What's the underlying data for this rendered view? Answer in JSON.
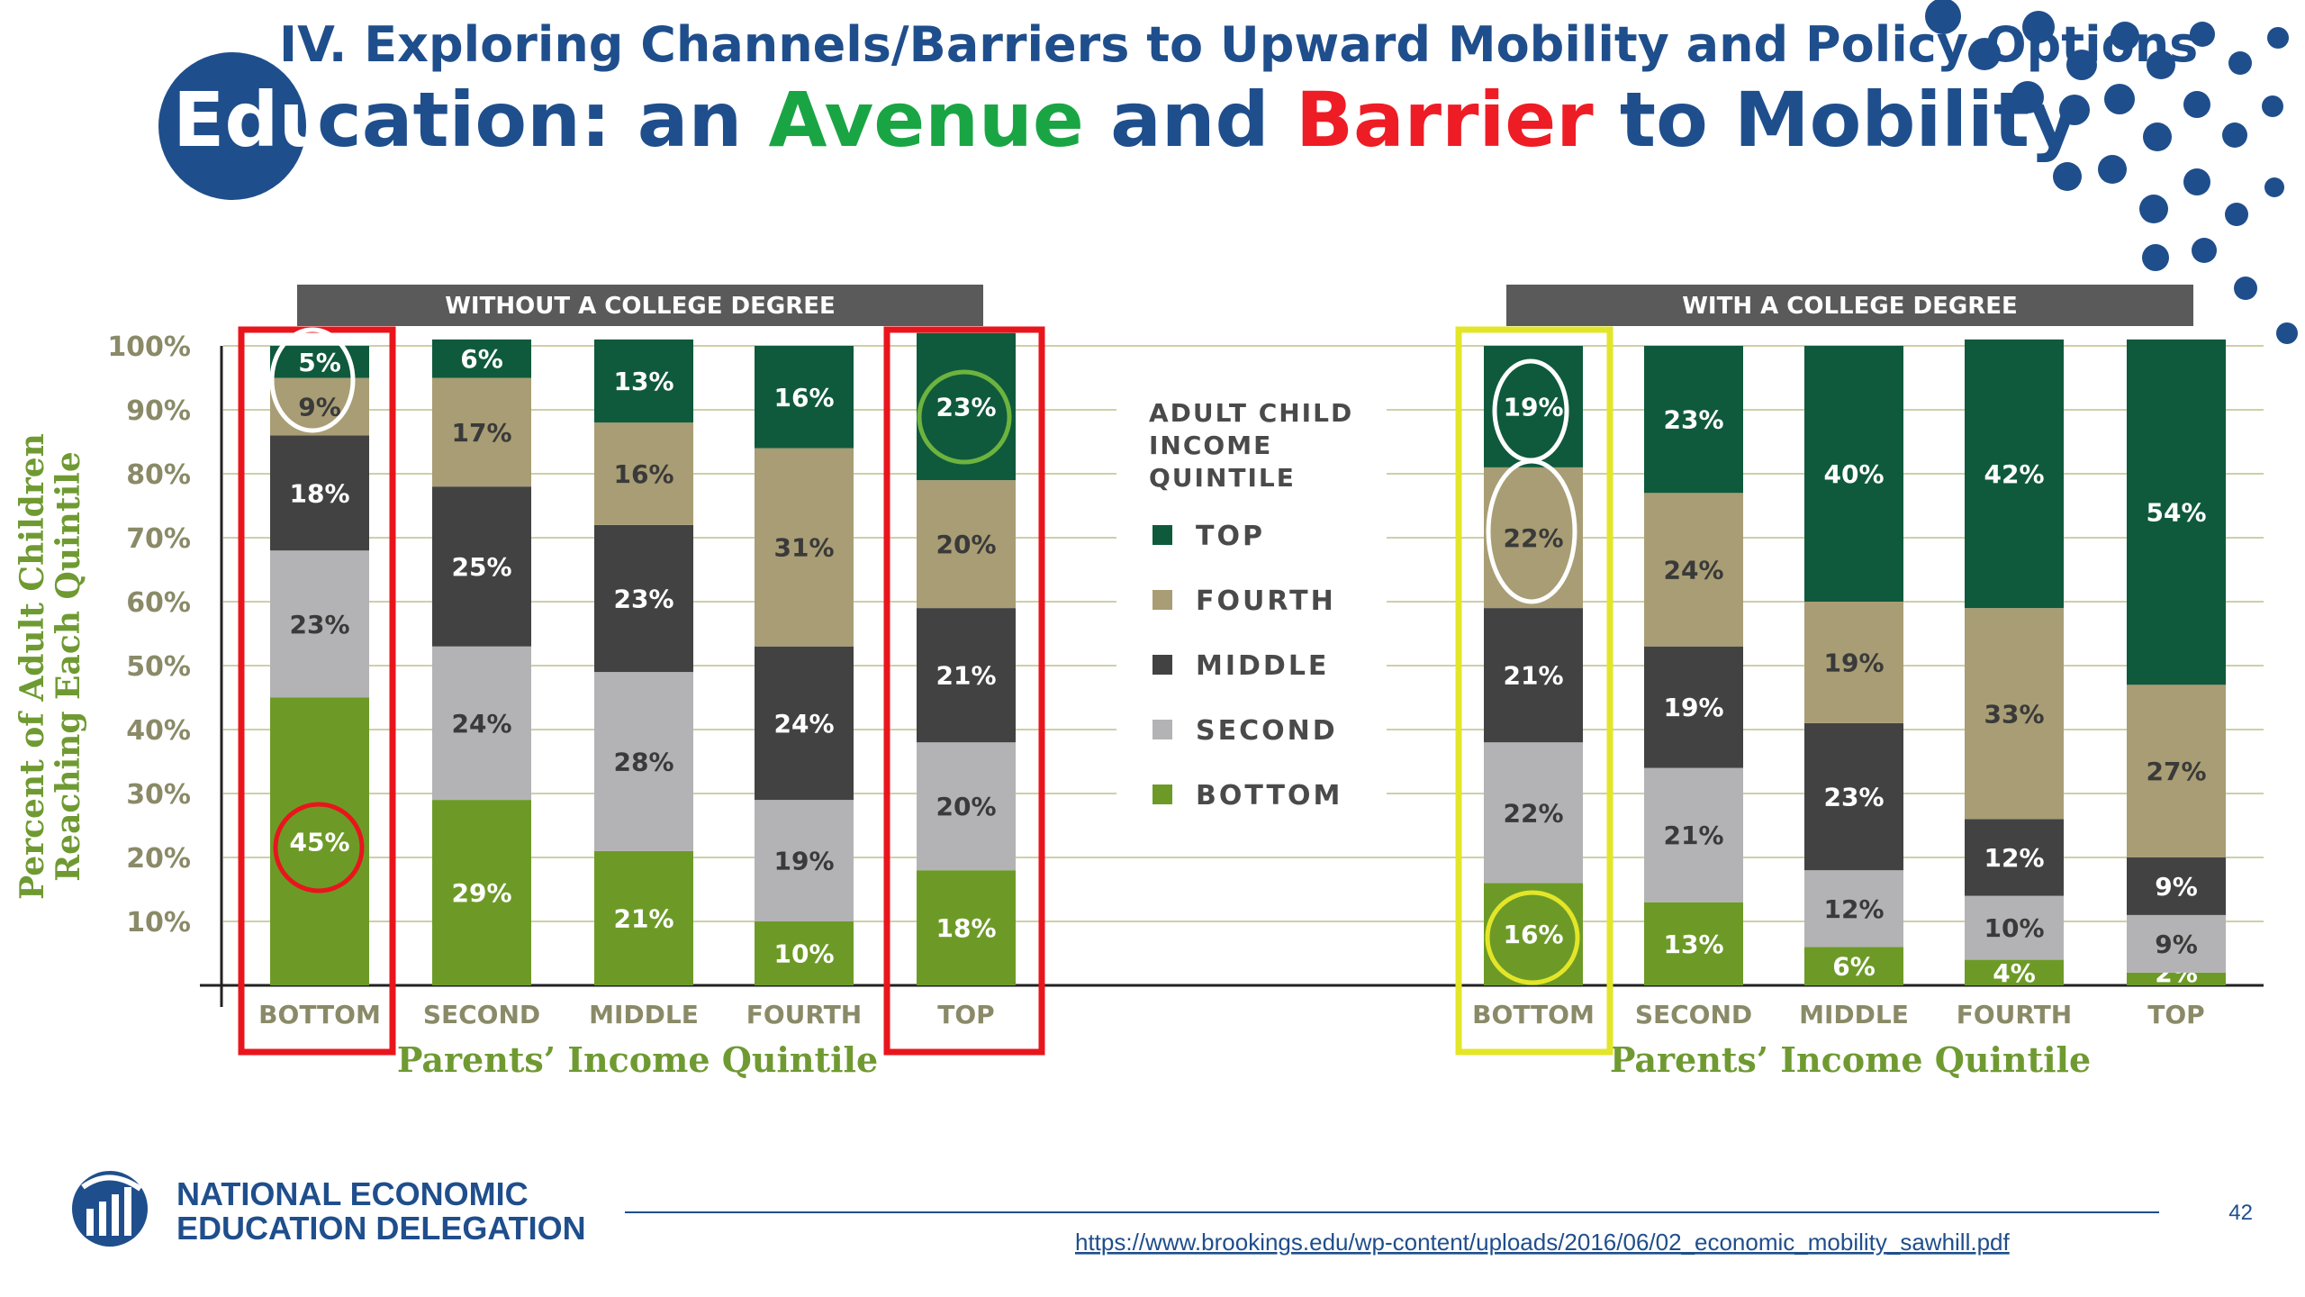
{
  "slide": {
    "supertitle": "IV. Exploring Channels/Barriers to Upward Mobility and Policy Options",
    "title_part1": "Edu",
    "title_part2": "cation: an ",
    "title_avenue": "Avenue",
    "title_and": " and ",
    "title_barrier": "Barrier",
    "title_end": " to Mobility",
    "page_number": "42",
    "source_url": "https://www.brookings.edu/wp-content/uploads/2016/06/02_economic_mobility_sawhill.pdf",
    "logo_line1": "NATIONAL ECONOMIC",
    "logo_line2": "EDUCATION DELEGATION"
  },
  "colors": {
    "navy": "#1f4e8c",
    "green_title": "#1aa544",
    "red_title": "#ee1c25",
    "top": "#0f5a3c",
    "fourth": "#a89d74",
    "middle": "#424242",
    "second": "#b3b3b5",
    "bottom": "#6d9a27",
    "axis_text": "#8a8a68",
    "ylabel": "#6f9a32",
    "header_bar": "#5a5a5a",
    "red_box": "#e8161c",
    "yellow_box": "#e3e628"
  },
  "chart_data": [
    {
      "type": "bar",
      "stacked": true,
      "title": "WITHOUT A COLLEGE DEGREE",
      "xlabel": "Parents’ Income Quintile",
      "ylabel": "Percent of Adult Children Reaching Each Quintile",
      "ylim": [
        0,
        100
      ],
      "yticks": [
        "10%",
        "20%",
        "30%",
        "40%",
        "50%",
        "60%",
        "70%",
        "80%",
        "90%",
        "100%"
      ],
      "categories": [
        "BOTTOM",
        "SECOND",
        "MIDDLE",
        "FOURTH",
        "TOP"
      ],
      "series": [
        {
          "name": "BOTTOM",
          "values": [
            45,
            29,
            21,
            10,
            18
          ]
        },
        {
          "name": "SECOND",
          "values": [
            23,
            24,
            28,
            19,
            20
          ]
        },
        {
          "name": "MIDDLE",
          "values": [
            18,
            25,
            23,
            24,
            21
          ]
        },
        {
          "name": "FOURTH",
          "values": [
            9,
            17,
            16,
            31,
            20
          ]
        },
        {
          "name": "TOP",
          "values": [
            5,
            6,
            13,
            16,
            23
          ]
        }
      ]
    },
    {
      "type": "bar",
      "stacked": true,
      "title": "WITH A COLLEGE DEGREE",
      "xlabel": "Parents’ Income Quintile",
      "ylim": [
        0,
        100
      ],
      "categories": [
        "BOTTOM",
        "SECOND",
        "MIDDLE",
        "FOURTH",
        "TOP"
      ],
      "series": [
        {
          "name": "BOTTOM",
          "values": [
            16,
            13,
            6,
            4,
            2
          ]
        },
        {
          "name": "SECOND",
          "values": [
            22,
            21,
            12,
            10,
            9
          ]
        },
        {
          "name": "MIDDLE",
          "values": [
            21,
            19,
            23,
            12,
            9
          ]
        },
        {
          "name": "FOURTH",
          "values": [
            22,
            24,
            19,
            33,
            27
          ]
        },
        {
          "name": "TOP",
          "values": [
            19,
            23,
            40,
            42,
            54
          ]
        }
      ]
    }
  ],
  "legend": {
    "title_lines": [
      "ADULT CHILD",
      "INCOME",
      "QUINTILE"
    ],
    "items": [
      "TOP",
      "FOURTH",
      "MIDDLE",
      "SECOND",
      "BOTTOM"
    ]
  }
}
